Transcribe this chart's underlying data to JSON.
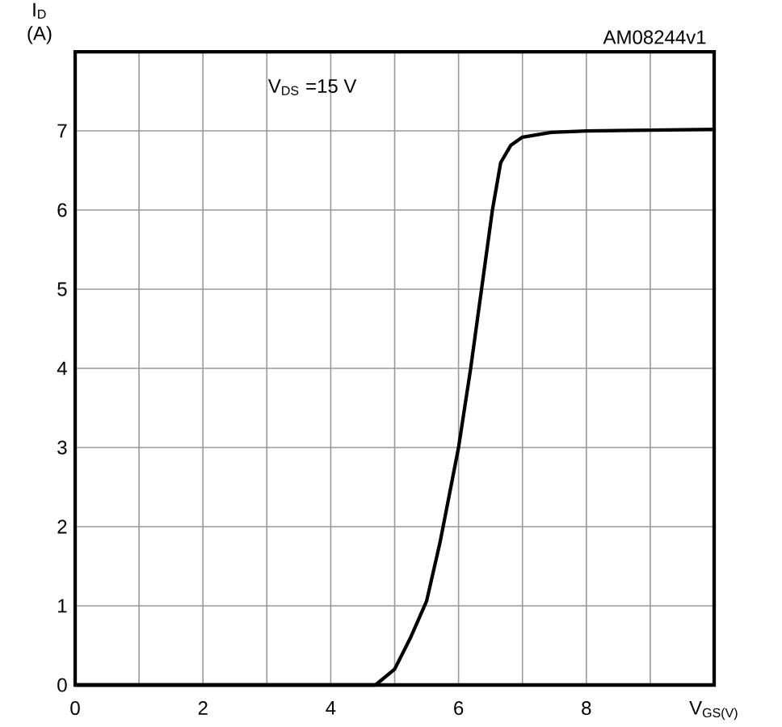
{
  "chart_data": {
    "type": "line",
    "xlabel": "V$_{GS(V)}$",
    "ylabel": "I$_{D}$ (A)",
    "annotations": [
      "V$_{DS}$ =15 V",
      "AM08244v1"
    ],
    "x": [
      0,
      4.7,
      5.0,
      5.25,
      5.5,
      5.71,
      6.0,
      6.19,
      6.36,
      6.53,
      6.66,
      6.82,
      7.0,
      7.45,
      8.0,
      9.0,
      10.0
    ],
    "series": [
      {
        "color": "#000000",
        "values": [
          0,
          0,
          0.2,
          0.6,
          1.06,
          1.8,
          3.0,
          4.0,
          5.0,
          6.0,
          6.6,
          6.82,
          6.92,
          6.98,
          7.0,
          7.01,
          7.02
        ]
      }
    ],
    "xlim": [
      0,
      10
    ],
    "ylim": [
      0,
      8
    ],
    "xticks": [
      0,
      {
        "value": 1,
        "label": null
      },
      2,
      {
        "value": 3,
        "label": null
      },
      4,
      {
        "value": 5,
        "label": null
      },
      6,
      {
        "value": 7,
        "label": null
      },
      8,
      {
        "value": 9,
        "label": null
      }
    ],
    "yticks": [
      0,
      1,
      2,
      3,
      4,
      5,
      6,
      7
    ],
    "grid": true,
    "marker": "none",
    "line_style": "solid"
  }
}
